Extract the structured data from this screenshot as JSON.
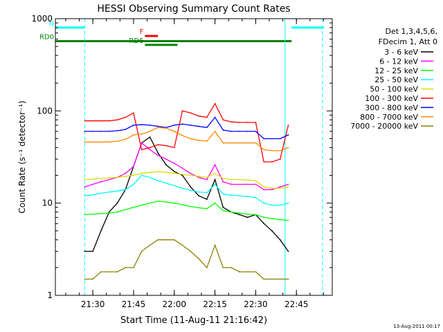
{
  "chart_data": {
    "type": "line",
    "title": "HESSI Observing Summary Count Rates",
    "xlabel": "Start Time (11-Aug-11 21:16:42)",
    "ylabel": "Count Rate (s⁻¹ detector⁻¹)",
    "y_scale": "log",
    "ylim": [
      1,
      1000
    ],
    "xlim_minutes": [
      21.27,
      22.97
    ],
    "x_unit": "hours (UT decimal)",
    "x_ticks": [
      {
        "x": 21.5,
        "label": "21:30"
      },
      {
        "x": 21.75,
        "label": "21:45"
      },
      {
        "x": 22.0,
        "label": "22:00"
      },
      {
        "x": 22.25,
        "label": "22:15"
      },
      {
        "x": 22.5,
        "label": "22:30"
      },
      {
        "x": 22.75,
        "label": "22:45"
      }
    ],
    "y_ticks": [
      {
        "y": 1,
        "label": "1"
      },
      {
        "y": 10,
        "label": "10"
      },
      {
        "y": 100,
        "label": "100"
      },
      {
        "y": 1000,
        "label": "1000"
      }
    ],
    "grid": false,
    "legend_placement": "right",
    "legend_header": [
      "Det 1,3,4,5,6,",
      "FDecim 1, Att 0"
    ],
    "timestamp": "13-Aug-2011 00:17",
    "series": [
      {
        "name": "3 - 6 keV",
        "color": "#000000",
        "x": [
          21.45,
          21.5,
          21.55,
          21.6,
          21.65,
          21.7,
          21.75,
          21.8,
          21.85,
          21.9,
          21.95,
          22.0,
          22.05,
          22.1,
          22.15,
          22.2,
          22.25,
          22.3,
          22.35,
          22.4,
          22.45,
          22.5,
          22.55,
          22.6,
          22.65,
          22.7
        ],
        "y": [
          3,
          3,
          5,
          8,
          10,
          14,
          25,
          45,
          52,
          35,
          26,
          22,
          20,
          15,
          12,
          11,
          18,
          9,
          8,
          7.5,
          7,
          7.5,
          6,
          5,
          4,
          3
        ]
      },
      {
        "name": "6 - 12 keV",
        "color": "#ff00ff",
        "x": [
          21.45,
          21.5,
          21.55,
          21.6,
          21.65,
          21.7,
          21.75,
          21.8,
          21.85,
          21.9,
          21.95,
          22.0,
          22.05,
          22.1,
          22.15,
          22.2,
          22.25,
          22.3,
          22.35,
          22.4,
          22.45,
          22.5,
          22.55,
          22.6,
          22.65,
          22.7
        ],
        "y": [
          15,
          16,
          17,
          18,
          19,
          21,
          25,
          45,
          38,
          33,
          30,
          27,
          24,
          21,
          19,
          18,
          26,
          17,
          16,
          16,
          16,
          16,
          14,
          14,
          15,
          16
        ]
      },
      {
        "name": "12 - 25 keV",
        "color": "#00ff00",
        "x": [
          21.45,
          21.5,
          21.55,
          21.6,
          21.65,
          21.7,
          21.75,
          21.8,
          21.85,
          21.9,
          21.95,
          22.0,
          22.05,
          22.1,
          22.15,
          22.2,
          22.25,
          22.3,
          22.35,
          22.4,
          22.45,
          22.5,
          22.55,
          22.6,
          22.65,
          22.7
        ],
        "y": [
          7.5,
          7.6,
          7.7,
          7.8,
          8,
          8.5,
          9,
          9.5,
          10,
          10.5,
          10.3,
          10,
          9.6,
          9.2,
          8.9,
          8.7,
          10,
          8.3,
          8,
          7.8,
          7.6,
          7.5,
          7,
          6.8,
          6.6,
          6.5
        ]
      },
      {
        "name": "25 - 50 keV",
        "color": "#00ffff",
        "x": [
          21.45,
          21.5,
          21.55,
          21.6,
          21.65,
          21.7,
          21.75,
          21.8,
          21.85,
          21.9,
          21.95,
          22.0,
          22.05,
          22.1,
          22.15,
          22.2,
          22.25,
          22.3,
          22.35,
          22.4,
          22.45,
          22.5,
          22.55,
          22.6,
          22.65,
          22.7
        ],
        "y": [
          12,
          12.3,
          12.8,
          13.2,
          13.5,
          14,
          16,
          20,
          19,
          17.5,
          16.5,
          15.5,
          14.5,
          13.8,
          13.2,
          13,
          16,
          12.5,
          12.2,
          12,
          11.8,
          11.5,
          10,
          9.5,
          9.5,
          10
        ]
      },
      {
        "name": "50 - 100 keV",
        "color": "#dddd00",
        "x": [
          21.45,
          21.5,
          21.55,
          21.6,
          21.65,
          21.7,
          21.75,
          21.8,
          21.85,
          21.9,
          21.95,
          22.0,
          22.05,
          22.1,
          22.15,
          22.2,
          22.25,
          22.3,
          22.35,
          22.4,
          22.45,
          22.5,
          22.55,
          22.6,
          22.65,
          22.7
        ],
        "y": [
          18,
          18.2,
          18.5,
          18.8,
          19,
          19.5,
          20,
          21,
          21.5,
          22,
          21.5,
          21,
          20.5,
          20,
          19.5,
          19,
          21,
          18.5,
          18,
          18,
          17.8,
          17.5,
          15,
          14.5,
          14.5,
          15
        ]
      },
      {
        "name": "100 - 300 keV",
        "color": "#ff0000",
        "x": [
          21.45,
          21.5,
          21.55,
          21.6,
          21.65,
          21.7,
          21.75,
          21.8,
          21.85,
          21.9,
          21.95,
          22.0,
          22.05,
          22.1,
          22.15,
          22.2,
          22.25,
          22.3,
          22.35,
          22.4,
          22.45,
          22.5,
          22.55,
          22.6,
          22.65,
          22.7
        ],
        "y": [
          78,
          78,
          78,
          78,
          80,
          85,
          95,
          38,
          40,
          43,
          42,
          40,
          100,
          95,
          88,
          85,
          120,
          80,
          76,
          75,
          75,
          75,
          28,
          28,
          30,
          70
        ]
      },
      {
        "name": "300 - 800 keV",
        "color": "#0000ff",
        "x": [
          21.45,
          21.5,
          21.55,
          21.6,
          21.65,
          21.7,
          21.75,
          21.8,
          21.85,
          21.9,
          21.95,
          22.0,
          22.05,
          22.1,
          22.15,
          22.2,
          22.25,
          22.3,
          22.35,
          22.4,
          22.45,
          22.5,
          22.55,
          22.6,
          22.65,
          22.7
        ],
        "y": [
          60,
          60,
          60,
          60,
          61,
          63,
          70,
          71,
          70,
          68,
          66,
          70,
          72,
          70,
          68,
          66,
          85,
          62,
          60,
          60,
          60,
          60,
          50,
          50,
          50,
          55
        ]
      },
      {
        "name": "800 - 7000 keV",
        "color": "#ff8800",
        "x": [
          21.45,
          21.5,
          21.55,
          21.6,
          21.65,
          21.7,
          21.75,
          21.8,
          21.85,
          21.9,
          21.95,
          22.0,
          22.05,
          22.1,
          22.15,
          22.2,
          22.25,
          22.3,
          22.35,
          22.4,
          22.45,
          22.5,
          22.55,
          22.6,
          22.65,
          22.7
        ],
        "y": [
          46,
          46,
          46,
          46,
          47,
          49,
          55,
          56,
          60,
          66,
          65,
          60,
          54,
          50,
          48,
          47,
          60,
          45,
          45,
          45,
          45,
          45,
          38,
          37,
          37,
          40
        ]
      },
      {
        "name": "7000 - 20000 keV",
        "color": "#8b8000",
        "x": [
          21.45,
          21.5,
          21.55,
          21.6,
          21.65,
          21.7,
          21.75,
          21.8,
          21.85,
          21.9,
          21.95,
          22.0,
          22.05,
          22.1,
          22.15,
          22.2,
          22.25,
          22.3,
          22.35,
          22.4,
          22.45,
          22.5,
          22.55,
          22.6,
          22.65,
          22.7
        ],
        "y": [
          1.5,
          1.5,
          1.8,
          1.8,
          1.8,
          2,
          2,
          3,
          3.5,
          4,
          4,
          4,
          3.5,
          3,
          2.5,
          2,
          3.5,
          2,
          2,
          1.8,
          1.8,
          1.8,
          1.5,
          1.5,
          1.5,
          1.5
        ]
      }
    ],
    "flags": [
      {
        "label": "N",
        "color": "#00ffff",
        "x_start": 21.27,
        "x_end": 21.45,
        "y": 800
      },
      {
        "label": "",
        "color": "#00ffff",
        "x_start": 22.72,
        "x_end": 22.92,
        "y": 800
      },
      {
        "label": "F",
        "color": "#ff0000",
        "x_start": 21.82,
        "x_end": 21.9,
        "y": 650
      },
      {
        "label": "RD0",
        "color": "#008000",
        "x_start": 21.27,
        "x_end": 22.72,
        "y": 570
      },
      {
        "label": "RD6",
        "color": "#008000",
        "x_start": 21.82,
        "x_end": 22.02,
        "y": 520
      }
    ],
    "vlines": [
      {
        "x": 21.45,
        "color": "#00ffff",
        "style": "dashed"
      },
      {
        "x": 22.68,
        "color": "#00ffff",
        "style": "solid"
      },
      {
        "x": 22.91,
        "color": "#00ffff",
        "style": "dashed"
      },
      {
        "x": 21.27,
        "color": "#00ffff",
        "style": "solid"
      }
    ]
  }
}
